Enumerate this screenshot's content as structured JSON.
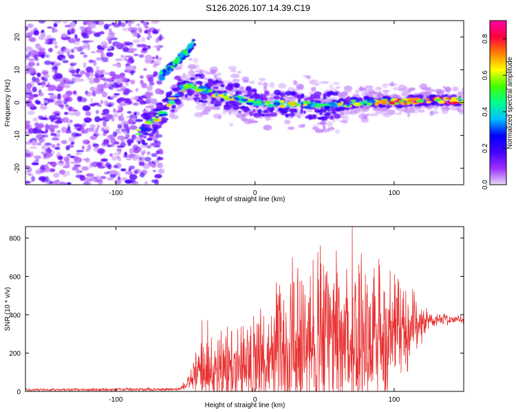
{
  "figure": {
    "title": "S126.2026.107.14.39.C19"
  },
  "chart_data": [
    {
      "type": "heatmap",
      "title": "",
      "xlabel": "Height of straight line (km)",
      "ylabel": "Frequency (Hz)",
      "xlim": [
        -165,
        150
      ],
      "ylim": [
        -25,
        25
      ],
      "xticks": [
        -100,
        0,
        100
      ],
      "yticks": [
        -20,
        -10,
        0,
        10,
        20
      ],
      "colorbar": {
        "label": "Normalized spectral amplitude",
        "range": [
          0.0,
          0.9
        ],
        "ticks": [
          0.0,
          0.2,
          0.4,
          0.6,
          0.8
        ],
        "colormap": [
          "#e8d8f8",
          "#9b30ff",
          "#4400ff",
          "#0000ff",
          "#00c0ff",
          "#00ff90",
          "#40ff00",
          "#ffff00",
          "#ff8000",
          "#ff0040",
          "#ff00a0"
        ]
      },
      "ridge": {
        "description_points": [
          {
            "x": -83,
            "y": -9
          },
          {
            "x": -75,
            "y": -6
          },
          {
            "x": -65,
            "y": -3
          },
          {
            "x": -55,
            "y": 4
          },
          {
            "x": -45,
            "y": 5
          },
          {
            "x": -30,
            "y": 3
          },
          {
            "x": -15,
            "y": 1.5
          },
          {
            "x": 0,
            "y": 0
          },
          {
            "x": 25,
            "y": -0.5
          },
          {
            "x": 50,
            "y": -1
          },
          {
            "x": 75,
            "y": 0
          },
          {
            "x": 100,
            "y": 0.2
          },
          {
            "x": 125,
            "y": 0.6
          },
          {
            "x": 148,
            "y": 0.6
          }
        ],
        "upper_branch": [
          {
            "x": -68,
            "y": 8
          },
          {
            "x": -60,
            "y": 11
          },
          {
            "x": -50,
            "y": 15
          },
          {
            "x": -43,
            "y": 19
          }
        ]
      }
    },
    {
      "type": "line",
      "title": "",
      "xlabel": "Height of straight line (km)",
      "ylabel": "SNR (10 * v/v)",
      "xlim": [
        -165,
        150
      ],
      "ylim": [
        0,
        860
      ],
      "xticks": [
        -100,
        0,
        100
      ],
      "yticks": [
        0,
        200,
        400,
        600,
        800
      ],
      "series": [
        {
          "name": "SNR",
          "color": "#e83030",
          "envelope": [
            {
              "x": -165,
              "base": 8,
              "amp": 8
            },
            {
              "x": -55,
              "base": 10,
              "amp": 10
            },
            {
              "x": -48,
              "base": 40,
              "amp": 40
            },
            {
              "x": -40,
              "base": 80,
              "amp": 200
            },
            {
              "x": -35,
              "base": 100,
              "amp": 270
            },
            {
              "x": -30,
              "base": 90,
              "amp": 220
            },
            {
              "x": -20,
              "base": 110,
              "amp": 250
            },
            {
              "x": -10,
              "base": 130,
              "amp": 280
            },
            {
              "x": 0,
              "base": 140,
              "amp": 300
            },
            {
              "x": 10,
              "base": 160,
              "amp": 350
            },
            {
              "x": 20,
              "base": 180,
              "amp": 430
            },
            {
              "x": 30,
              "base": 200,
              "amp": 480
            },
            {
              "x": 45,
              "base": 220,
              "amp": 540
            },
            {
              "x": 60,
              "base": 240,
              "amp": 560
            },
            {
              "x": 70,
              "base": 250,
              "amp": 600
            },
            {
              "x": 85,
              "base": 260,
              "amp": 520
            },
            {
              "x": 100,
              "base": 280,
              "amp": 420
            },
            {
              "x": 115,
              "base": 330,
              "amp": 200
            },
            {
              "x": 125,
              "base": 370,
              "amp": 50
            },
            {
              "x": 150,
              "base": 375,
              "amp": 25
            }
          ],
          "peaks": [
            {
              "x": -38,
              "y": 370
            },
            {
              "x": 27,
              "y": 700
            },
            {
              "x": 47,
              "y": 760
            },
            {
              "x": 70,
              "y": 860
            },
            {
              "x": 89,
              "y": 690
            }
          ]
        }
      ]
    }
  ]
}
